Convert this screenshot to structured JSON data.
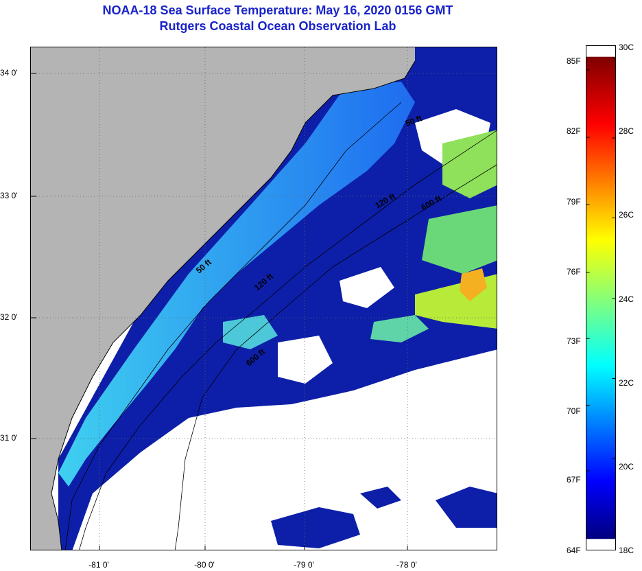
{
  "title": {
    "line1": "NOAA-18 Sea Surface Temperature:  May 16, 2020 0156 GMT",
    "line2": "Rutgers Coastal Ocean Observation Lab"
  },
  "map": {
    "lat_ticks": [
      "34 0'",
      "33 0'",
      "32 0'",
      "31 0'"
    ],
    "lon_ticks": [
      "-81 0'",
      "-80 0'",
      "-79 0'",
      "-78 0'"
    ],
    "isobaths": [
      "50 ft",
      "120 ft",
      "600 ft",
      "50 ft",
      "120 ft",
      "600 ft"
    ],
    "land_color": "#b4b4b4",
    "cloud_color": "#ffffff"
  },
  "colorbar": {
    "fahrenheit": [
      "85F",
      "82F",
      "79F",
      "76F",
      "73F",
      "70F",
      "67F",
      "64F"
    ],
    "celsius": [
      "30C",
      "28C",
      "26C",
      "24C",
      "22C",
      "20C",
      "18C"
    ]
  }
}
